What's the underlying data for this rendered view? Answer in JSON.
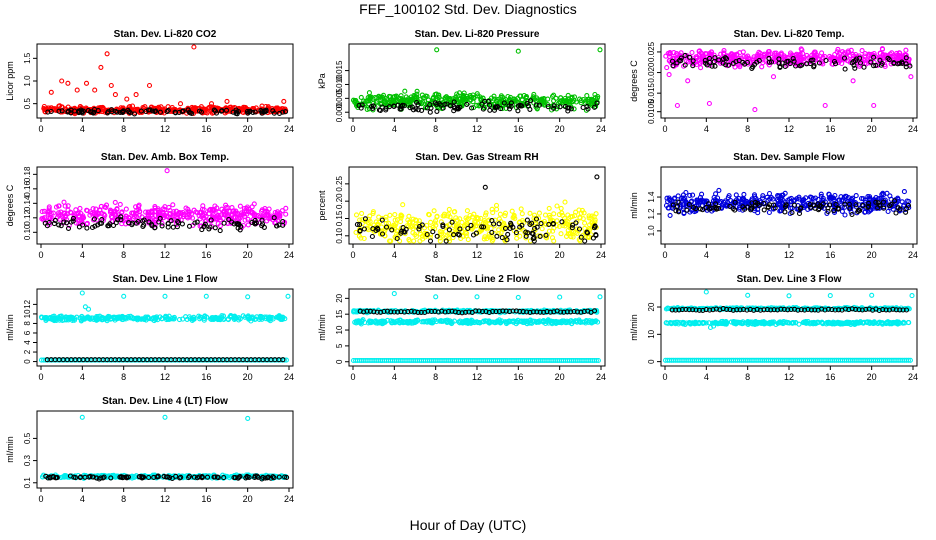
{
  "figure": {
    "title": "FEF_100102  Std. Dev. Diagnostics",
    "xlabel": "Hour of Day (UTC)"
  },
  "chart_data": [
    {
      "type": "scatter",
      "title": "Stan. Dev. Li-820 CO2",
      "ylabel": "Licor ppm",
      "xlim": [
        0,
        24
      ],
      "ylim": [
        0.25,
        1.75
      ],
      "xticks": [
        "0",
        "4",
        "8",
        "12",
        "16",
        "20",
        "24"
      ],
      "yticks": [
        {
          "v": 0.5,
          "l": "0.5"
        },
        {
          "v": 1.0,
          "l": "1.0"
        },
        {
          "v": 1.5,
          "l": "1.5"
        }
      ],
      "series": [
        {
          "color": "#ff0000",
          "kind": "main",
          "base": [
            0.36,
            0.07
          ],
          "seed": 11,
          "extra": [
            [
              1,
              0.75
            ],
            [
              2,
              1.0
            ],
            [
              2.6,
              0.95
            ],
            [
              3.5,
              0.8
            ],
            [
              4.4,
              0.95
            ],
            [
              5.2,
              0.8
            ],
            [
              5.8,
              1.3
            ],
            [
              6.4,
              1.6
            ],
            [
              6.8,
              0.9
            ],
            [
              7.2,
              0.7
            ],
            [
              8.3,
              0.6
            ],
            [
              9.2,
              0.7
            ],
            [
              10.5,
              0.9
            ],
            [
              13.5,
              0.5
            ],
            [
              14.8,
              1.8
            ],
            [
              16.5,
              0.5
            ],
            [
              18,
              0.55
            ],
            [
              23.5,
              0.55
            ]
          ]
        },
        {
          "color": "#000000",
          "kind": "overlay",
          "base": [
            0.33,
            0.04
          ],
          "seed": 12,
          "extra": []
        }
      ]
    },
    {
      "type": "scatter",
      "title": "Stan. Dev. Li-820 Pressure",
      "ylabel": "kPa",
      "xlim": [
        0,
        24
      ],
      "ylim": [
        -0.001,
        0.0235
      ],
      "xticks": [
        "0",
        "4",
        "8",
        "12",
        "16",
        "20",
        "24"
      ],
      "yticks": [
        {
          "v": 0,
          "l": "0.000"
        },
        {
          "v": 0.005,
          "l": "0.005"
        },
        {
          "v": 0.01,
          "l": "0.010"
        },
        {
          "v": 0.015,
          "l": "0.015"
        }
      ],
      "series": [
        {
          "color": "#00c000",
          "kind": "main",
          "base": [
            0.004,
            0.0025
          ],
          "seed": 21,
          "extra": [
            [
              8.1,
              0.0225
            ],
            [
              16,
              0.022
            ],
            [
              23.9,
              0.0225
            ]
          ]
        },
        {
          "color": "#000000",
          "kind": "overlay",
          "base": [
            0.002,
            0.0018
          ],
          "seed": 22,
          "extra": []
        }
      ]
    },
    {
      "type": "scatter",
      "title": "Stan. Dev. Li-820 Temp.",
      "ylabel": "degrees C",
      "xlim": [
        0,
        24
      ],
      "ylim": [
        0.0097,
        0.0262
      ],
      "xticks": [
        "0",
        "4",
        "8",
        "12",
        "16",
        "20",
        "24"
      ],
      "yticks": [
        {
          "v": 0.0105,
          "l": "0.0105"
        },
        {
          "v": 0.015,
          "l": "0.015"
        },
        {
          "v": 0.02,
          "l": "0.020"
        },
        {
          "v": 0.025,
          "l": "0.025"
        }
      ],
      "series": [
        {
          "color": "#ff00ff",
          "kind": "main",
          "base": [
            0.0235,
            0.0018
          ],
          "seed": 31,
          "extra": [
            [
              0.4,
              0.0195
            ],
            [
              1.2,
              0.012
            ],
            [
              2.2,
              0.018
            ],
            [
              4.3,
              0.0125
            ],
            [
              8.7,
              0.011
            ],
            [
              10.5,
              0.019
            ],
            [
              15.5,
              0.012
            ],
            [
              18.2,
              0.018
            ],
            [
              20.2,
              0.012
            ],
            [
              23.8,
              0.019
            ]
          ]
        },
        {
          "color": "#000000",
          "kind": "overlay",
          "base": [
            0.0225,
            0.0015
          ],
          "seed": 32,
          "extra": []
        }
      ]
    },
    {
      "type": "scatter",
      "title": "Stan. Dev. Amb. Box Temp.",
      "ylabel": "degrees C",
      "xlim": [
        0,
        24
      ],
      "ylim": [
        0.088,
        0.186
      ],
      "xticks": [
        "0",
        "4",
        "8",
        "12",
        "16",
        "20",
        "24"
      ],
      "yticks": [
        {
          "v": 0.1,
          "l": "0.10"
        },
        {
          "v": 0.12,
          "l": "0.12"
        },
        {
          "v": 0.14,
          "l": "0.14"
        },
        {
          "v": 0.16,
          "l": "0.16"
        },
        {
          "v": 0.18,
          "l": "0.18"
        }
      ],
      "series": [
        {
          "color": "#ff00ff",
          "kind": "main",
          "base": [
            0.124,
            0.013
          ],
          "seed": 41,
          "extra": [
            [
              12.2,
              0.185
            ]
          ]
        },
        {
          "color": "#000000",
          "kind": "overlay",
          "base": [
            0.112,
            0.009
          ],
          "seed": 42,
          "extra": []
        }
      ]
    },
    {
      "type": "scatter",
      "title": "Stan. Dev. Gas Stream RH",
      "ylabel": "percent",
      "xlim": [
        0,
        24
      ],
      "ylim": [
        0.085,
        0.29
      ],
      "xticks": [
        "0",
        "4",
        "8",
        "12",
        "16",
        "20",
        "24"
      ],
      "yticks": [
        {
          "v": 0.1,
          "l": "0.10"
        },
        {
          "v": 0.15,
          "l": "0.15"
        },
        {
          "v": 0.2,
          "l": "0.20"
        },
        {
          "v": 0.25,
          "l": "0.25"
        }
      ],
      "series": [
        {
          "color": "#ffff00",
          "kind": "main",
          "base": [
            0.13,
            0.045
          ],
          "seed": 51,
          "extra": []
        },
        {
          "color": "#000000",
          "kind": "overlay",
          "base": [
            0.12,
            0.03
          ],
          "seed": 52,
          "extra": [
            [
              12.8,
              0.24
            ],
            [
              23.6,
              0.27
            ]
          ]
        }
      ]
    },
    {
      "type": "scatter",
      "title": "Stan. Dev. Sample Flow",
      "ylabel": "ml/min",
      "xlim": [
        0,
        24
      ],
      "ylim": [
        0.88,
        1.72
      ],
      "xticks": [
        "0",
        "4",
        "8",
        "12",
        "16",
        "20",
        "24"
      ],
      "yticks": [
        {
          "v": 1.0,
          "l": "1.0"
        },
        {
          "v": 1.2,
          "l": "1.2"
        },
        {
          "v": 1.4,
          "l": "1.4"
        }
      ],
      "series": [
        {
          "color": "#0000dd",
          "kind": "main",
          "base": [
            1.33,
            0.11
          ],
          "seed": 61,
          "extra": []
        },
        {
          "color": "#000000",
          "kind": "overlay",
          "base": [
            1.28,
            0.06
          ],
          "seed": 62,
          "extra": []
        }
      ]
    },
    {
      "type": "scatter",
      "title": "Stan. Dev. Line 1 Flow",
      "ylabel": "ml/min",
      "xlim": [
        0,
        24
      ],
      "ylim": [
        -0.3,
        14.6
      ],
      "xticks": [
        "0",
        "4",
        "8",
        "12",
        "16",
        "20",
        "24"
      ],
      "yticks": [
        {
          "v": 0,
          "l": "0"
        },
        {
          "v": 2,
          "l": "2"
        },
        {
          "v": 4,
          "l": "4"
        },
        {
          "v": 6,
          "l": "6"
        },
        {
          "v": 8,
          "l": "8"
        },
        {
          "v": 10,
          "l": "10"
        },
        {
          "v": 12,
          "l": "12"
        }
      ],
      "series": [
        {
          "color": "#00eeee",
          "kind": "band",
          "base": [
            9.1,
            0.45
          ],
          "seed": 71,
          "extra": [
            [
              4,
              14.4
            ],
            [
              8,
              13.7
            ],
            [
              12,
              13.7
            ],
            [
              16,
              13.7
            ],
            [
              20,
              13.6
            ],
            [
              23.9,
              13.7
            ],
            [
              4.3,
              11.5
            ],
            [
              4.6,
              11
            ]
          ]
        },
        {
          "color": "#00eeee",
          "kind": "low",
          "base": [
            0.3,
            0.0
          ],
          "seed": 72,
          "extra": []
        },
        {
          "color": "#000000",
          "kind": "lowdark",
          "base": [
            0.4,
            0.0
          ],
          "seed": 73,
          "extra": []
        }
      ]
    },
    {
      "type": "scatter",
      "title": "Stan. Dev. Line 2 Flow",
      "ylabel": "ml/min",
      "xlim": [
        0,
        24
      ],
      "ylim": [
        -0.4,
        22
      ],
      "xticks": [
        "0",
        "4",
        "8",
        "12",
        "16",
        "20",
        "24"
      ],
      "yticks": [
        {
          "v": 0,
          "l": "0"
        },
        {
          "v": 5,
          "l": "5"
        },
        {
          "v": 10,
          "l": "10"
        },
        {
          "v": 15,
          "l": "15"
        },
        {
          "v": 20,
          "l": "20"
        }
      ],
      "series": [
        {
          "color": "#00eeee",
          "kind": "band",
          "base": [
            12.6,
            0.5
          ],
          "seed": 81,
          "extra": [
            [
              4,
              21.5
            ],
            [
              8,
              20.5
            ],
            [
              12,
              20.5
            ],
            [
              16,
              20.3
            ],
            [
              20,
              20.4
            ],
            [
              23.9,
              20.5
            ]
          ]
        },
        {
          "color": "#00eeee",
          "kind": "band2",
          "base": [
            15.9,
            0.35
          ],
          "seed": 82,
          "extra": []
        },
        {
          "color": "#00eeee",
          "kind": "low",
          "base": [
            0.4,
            0.0
          ],
          "seed": 83,
          "extra": []
        },
        {
          "color": "#000000",
          "kind": "darkline",
          "base": [
            15.8,
            0.3
          ],
          "seed": 84,
          "extra": []
        }
      ]
    },
    {
      "type": "scatter",
      "title": "Stan. Dev. Line 3 Flow",
      "ylabel": "ml/min",
      "xlim": [
        0,
        24
      ],
      "ylim": [
        -0.5,
        25.5
      ],
      "xticks": [
        "0",
        "4",
        "8",
        "12",
        "16",
        "20",
        "24"
      ],
      "yticks": [
        {
          "v": 0,
          "l": "0"
        },
        {
          "v": 10,
          "l": "10"
        },
        {
          "v": 20,
          "l": "20"
        }
      ],
      "series": [
        {
          "color": "#00eeee",
          "kind": "band",
          "base": [
            14.2,
            0.45
          ],
          "seed": 91,
          "extra": [
            [
              4,
              25.5
            ],
            [
              8,
              24.3
            ],
            [
              12,
              24.1
            ],
            [
              16,
              24.2
            ],
            [
              20,
              24.3
            ],
            [
              23.9,
              24.2
            ],
            [
              4.4,
              12.5
            ],
            [
              4.7,
              13
            ]
          ]
        },
        {
          "color": "#00eeee",
          "kind": "band2",
          "base": [
            19.4,
            0.35
          ],
          "seed": 92,
          "extra": []
        },
        {
          "color": "#00eeee",
          "kind": "low",
          "base": [
            0.5,
            0.0
          ],
          "seed": 93,
          "extra": []
        },
        {
          "color": "#000000",
          "kind": "darkline",
          "base": [
            19.0,
            0.3
          ],
          "seed": 94,
          "extra": []
        }
      ]
    },
    {
      "type": "scatter",
      "title": "Stan. Dev. Line 4 (LT) Flow",
      "ylabel": "ml/min",
      "xlim": [
        0,
        24
      ],
      "ylim": [
        0.08,
        0.72
      ],
      "xticks": [
        "0",
        "4",
        "8",
        "12",
        "16",
        "20",
        "24"
      ],
      "yticks": [
        {
          "v": 0.1,
          "l": "0.1"
        },
        {
          "v": 0.3,
          "l": "0.3"
        },
        {
          "v": 0.5,
          "l": "0.5"
        }
      ],
      "series": [
        {
          "color": "#00eeee",
          "kind": "band",
          "base": [
            0.155,
            0.012
          ],
          "seed": 101,
          "extra": [
            [
              4,
              0.69
            ],
            [
              12,
              0.69
            ],
            [
              20,
              0.68
            ]
          ]
        },
        {
          "color": "#000000",
          "kind": "overlay",
          "base": [
            0.15,
            0.012
          ],
          "seed": 102,
          "extra": []
        }
      ]
    }
  ]
}
